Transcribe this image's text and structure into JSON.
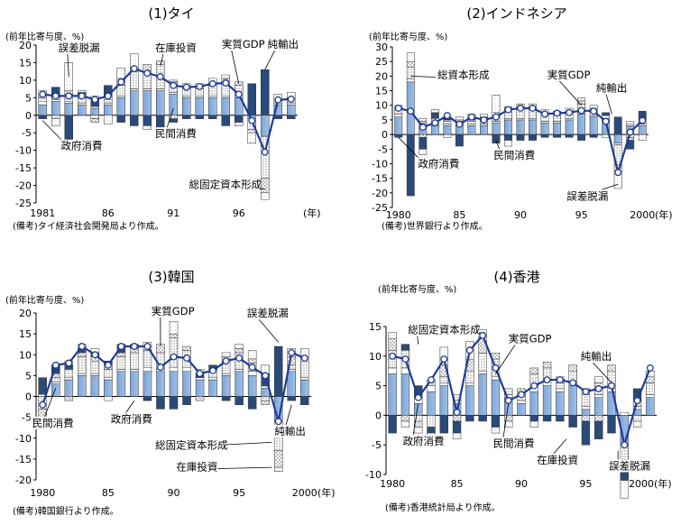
{
  "units_label": "(前年比寄与度、%)",
  "legend_components": [
    "民間消費",
    "政府消費",
    "総固定資本形成",
    "在庫投資",
    "純輸出",
    "誤差脱漏"
  ],
  "colors": {
    "private_consumption": "#9fbfe6",
    "government_consumption": "#ffffff",
    "gross_fixed_capital": "#dcdcdc",
    "inventory": "#e8e8e8",
    "net_exports": "#2a4a78",
    "discrepancy": "#f4f4f4",
    "gdp_line": "#1f3b95"
  },
  "panels": [
    {
      "title": "(1)タイ",
      "note": "(備考)タイ経済社会開発局より作成。",
      "year_unit": "(年)"
    },
    {
      "title": "(2)インドネシア",
      "note": "(備考)世界銀行より作成。",
      "year_unit": "(年)"
    },
    {
      "title": "(3)韓国",
      "note": "(備考)韓国銀行より作成。",
      "year_unit": "(年)"
    },
    {
      "title": "(4)香港",
      "note": "(備考)香港統計局より作成。",
      "year_unit": "(年)"
    }
  ],
  "chart_data": [
    {
      "type": "bar",
      "title": "(1)タイ",
      "ylabel": "(前年比寄与度、%)",
      "ylim": [
        -25,
        20
      ],
      "yticks": [
        -25,
        -20,
        -15,
        -10,
        -5,
        0,
        5,
        10,
        15,
        20
      ],
      "x": [
        1981,
        1982,
        1983,
        1984,
        1985,
        1986,
        1987,
        1988,
        1989,
        1990,
        1991,
        1992,
        1993,
        1994,
        1995,
        1996,
        1997,
        1998,
        1999,
        2000
      ],
      "xticks": [
        "1981",
        "86",
        "91",
        "96",
        "2000"
      ],
      "series": [
        {
          "key": "private_consumption",
          "values": [
            3,
            4,
            3.5,
            3,
            2,
            3,
            5,
            7,
            7,
            7,
            6,
            5,
            5,
            5,
            5,
            5,
            -1,
            -6,
            3,
            3
          ]
        },
        {
          "key": "government_consumption",
          "values": [
            1,
            0.5,
            0.5,
            0.5,
            0.5,
            0.5,
            0.5,
            0.5,
            0.5,
            0.5,
            0.5,
            0.5,
            0.5,
            0.5,
            0.5,
            0.5,
            0,
            0,
            0.5,
            0.5
          ]
        },
        {
          "key": "gross_fixed_capital",
          "values": [
            1,
            0.5,
            2,
            1.5,
            -1,
            1,
            3,
            5,
            5,
            7,
            3,
            2,
            2,
            3,
            4,
            3,
            -3,
            -12,
            0,
            1
          ]
        },
        {
          "key": "inventory",
          "values": [
            0.5,
            -1,
            1,
            0.5,
            -1,
            1,
            2,
            1,
            2,
            1,
            -1,
            0,
            0,
            0,
            1,
            1,
            -1,
            -4,
            1,
            0.5
          ]
        },
        {
          "key": "net_exports",
          "values": [
            -1,
            3,
            -9,
            1,
            2,
            3,
            -2,
            -3,
            -3,
            -5,
            -1,
            -1,
            -1,
            -1,
            -3,
            -2,
            9,
            13,
            -1,
            -1
          ]
        },
        {
          "key": "discrepancy",
          "values": [
            1.5,
            -2,
            8,
            0.5,
            1,
            -2.5,
            3,
            4,
            -1,
            0,
            0.5,
            1.5,
            1.5,
            2,
            1,
            -1,
            -3,
            -2,
            1.5,
            1.5
          ]
        }
      ],
      "gdp": [
        6,
        5.5,
        5.5,
        5.5,
        4.5,
        5.5,
        9.5,
        13.3,
        12,
        11,
        8.5,
        8,
        8.2,
        9,
        9.2,
        6,
        -1.5,
        -10.5,
        4.4,
        4.6
      ],
      "labels": [
        "誤差脱漏",
        "在庫投資",
        "実質GDP",
        "純輸出",
        "政府消費",
        "民間消費",
        "総固定資本形成"
      ]
    },
    {
      "type": "bar",
      "title": "(2)インドネシア",
      "ylabel": "(前年比寄与度、%)",
      "ylim": [
        -25,
        30
      ],
      "yticks": [
        -25,
        -20,
        -15,
        -10,
        -5,
        0,
        5,
        10,
        15,
        20,
        25,
        30
      ],
      "x": [
        1980,
        1981,
        1982,
        1983,
        1984,
        1985,
        1986,
        1987,
        1988,
        1989,
        1990,
        1991,
        1992,
        1993,
        1994,
        1995,
        1996,
        1997,
        1998,
        1999,
        2000
      ],
      "xticks": [
        "1980",
        "85",
        "90",
        "95",
        "2000"
      ],
      "series": [
        {
          "key": "private_consumption",
          "values": [
            6,
            18,
            4,
            3,
            3,
            3,
            3,
            3,
            4,
            5,
            5,
            5,
            4,
            4,
            5,
            7,
            6,
            5,
            -3,
            3,
            3
          ]
        },
        {
          "key": "government_consumption",
          "values": [
            1,
            1,
            0.5,
            0.5,
            0.5,
            0.5,
            0.5,
            0.5,
            0.5,
            0.5,
            0.5,
            0.5,
            0.5,
            0.5,
            0.5,
            0.5,
            0.5,
            0.5,
            -0.5,
            0.5,
            0.5
          ]
        },
        {
          "key": "gross_fixed_capital",
          "values": [
            2,
            4,
            1,
            1,
            1,
            1,
            1,
            1,
            2,
            3,
            4,
            3,
            2,
            2,
            2,
            3,
            2,
            1,
            -7,
            -1,
            1
          ]
        },
        {
          "key": "inventory",
          "values": [
            0,
            2,
            -1,
            1,
            0.5,
            0.5,
            0.5,
            0.5,
            1,
            1,
            1,
            1,
            1,
            0.5,
            0.5,
            1,
            0.5,
            0,
            -2,
            -1,
            0.5
          ]
        },
        {
          "key": "net_exports",
          "values": [
            -1,
            -21,
            -4,
            2,
            1,
            -4,
            1,
            1,
            -3,
            -2,
            -2,
            -2,
            -1,
            -1,
            -1,
            -2,
            -1,
            1,
            6,
            -3,
            3
          ]
        },
        {
          "key": "discrepancy",
          "values": [
            1,
            3,
            -2,
            1,
            -1,
            1,
            1,
            1,
            6,
            -2,
            0,
            1,
            1,
            1,
            1,
            1,
            1,
            -1,
            -6,
            1,
            -2
          ]
        }
      ],
      "gdp": [
        9,
        8,
        2.5,
        4,
        6.5,
        3.5,
        6,
        5,
        6,
        8.5,
        9,
        9,
        7,
        7.3,
        7.5,
        8.2,
        8,
        4.5,
        -13,
        0.8,
        4.8
      ],
      "labels": [
        "総資本形成",
        "実質GDP",
        "純輸出",
        "政府消費",
        "民間消費",
        "誤差脱漏"
      ]
    },
    {
      "type": "bar",
      "title": "(3)韓国",
      "ylabel": "(前年比寄与度、%)",
      "ylim": [
        -20,
        20
      ],
      "yticks": [
        -20,
        -15,
        -10,
        -5,
        0,
        5,
        10,
        15,
        20
      ],
      "x": [
        1980,
        1981,
        1982,
        1983,
        1984,
        1985,
        1986,
        1987,
        1988,
        1989,
        1990,
        1991,
        1992,
        1993,
        1994,
        1995,
        1996,
        1997,
        1998,
        1999,
        2000
      ],
      "xticks": [
        "1980",
        "85",
        "90",
        "95",
        "2000"
      ],
      "series": [
        {
          "key": "private_consumption",
          "values": [
            0,
            3,
            4,
            5,
            5,
            4,
            6,
            6,
            6,
            6,
            6,
            6,
            4,
            4,
            5,
            6,
            5,
            2,
            -6,
            6,
            4
          ]
        },
        {
          "key": "government_consumption",
          "values": [
            0.5,
            0.5,
            0.5,
            0.5,
            0.5,
            0.5,
            0.5,
            0.5,
            1,
            0.5,
            1,
            1,
            0.5,
            0.5,
            0.5,
            0.5,
            1,
            0.5,
            0,
            0.5,
            0.5
          ]
        },
        {
          "key": "gross_fixed_capital",
          "values": [
            -3,
            1,
            2,
            4,
            3,
            2,
            3,
            4,
            4,
            4,
            7,
            4,
            0,
            2,
            3,
            4,
            2,
            -1,
            -7,
            1,
            4
          ]
        },
        {
          "key": "inventory",
          "values": [
            -2,
            1,
            -1,
            1,
            1,
            1,
            1,
            1,
            1,
            2,
            1,
            1,
            -1,
            0,
            1,
            1,
            1,
            -1,
            -4,
            2,
            1
          ]
        },
        {
          "key": "net_exports",
          "values": [
            4,
            2,
            1,
            1,
            1,
            1,
            2,
            1,
            -1,
            -3,
            -3,
            -2,
            1,
            1,
            -1,
            -2,
            -3,
            3,
            12,
            -1,
            -2
          ]
        },
        {
          "key": "discrepancy",
          "values": [
            -1,
            0,
            1,
            1,
            1,
            -1,
            0,
            0,
            1,
            0,
            3,
            0,
            1,
            0,
            1,
            1,
            2,
            2,
            -1,
            2,
            2
          ]
        }
      ],
      "gdp": [
        -2,
        7.5,
        8,
        12,
        10,
        7.5,
        12,
        12,
        12,
        7,
        9.5,
        9.2,
        5.5,
        6.2,
        8.5,
        9.2,
        7,
        5,
        -6,
        10.5,
        9.2
      ],
      "labels": [
        "実質GDP",
        "誤差脱漏",
        "民間消費",
        "政府消費",
        "総固定資本形成",
        "在庫投資",
        "純輸出"
      ]
    },
    {
      "type": "bar",
      "title": "(4)香港",
      "ylabel": "(前年比寄与度、%)",
      "ylim": [
        -10,
        15
      ],
      "yticks": [
        -10,
        -5,
        0,
        5,
        10,
        15
      ],
      "x": [
        1980,
        1981,
        1982,
        1983,
        1984,
        1985,
        1986,
        1987,
        1988,
        1989,
        1990,
        1991,
        1992,
        1993,
        1994,
        1995,
        1996,
        1997,
        1998,
        1999,
        2000
      ],
      "xticks": [
        "1980",
        "85",
        "90",
        "95",
        "2000(年)"
      ],
      "series": [
        {
          "key": "private_consumption",
          "values": [
            7,
            7,
            2,
            4,
            5,
            2,
            5,
            7,
            6,
            3,
            2,
            4,
            5,
            4,
            5,
            1,
            3,
            4,
            -5,
            1,
            3
          ]
        },
        {
          "key": "government_consumption",
          "values": [
            1,
            1,
            1,
            1,
            0.5,
            0.5,
            0.5,
            0.5,
            0.5,
            0.5,
            0.5,
            1,
            1,
            0.5,
            0.5,
            0.5,
            0.5,
            0.5,
            0.5,
            0.5,
            0.5
          ]
        },
        {
          "key": "gross_fixed_capital",
          "values": [
            3,
            3,
            -1,
            -2,
            1,
            1,
            2,
            3,
            3,
            1,
            1,
            2,
            2,
            1,
            2,
            2,
            2,
            3,
            -3,
            -1,
            2
          ]
        },
        {
          "key": "inventory",
          "values": [
            2,
            -1,
            -1,
            1,
            2,
            -1,
            2,
            3,
            1,
            -1,
            1,
            1,
            1,
            1,
            1,
            -1,
            -1,
            1,
            -1,
            1,
            1
          ]
        },
        {
          "key": "net_exports",
          "values": [
            -3,
            1,
            2,
            -1,
            -3,
            -2,
            -1,
            -1,
            -2,
            0,
            0,
            -1,
            -1,
            -1,
            -2,
            -4,
            -3,
            -3,
            -2,
            2,
            0
          ]
        },
        {
          "key": "discrepancy",
          "values": [
            1,
            -1,
            -1,
            -2,
            3,
            -1,
            3,
            1,
            -1,
            -1,
            0,
            -1,
            0,
            0,
            0,
            1,
            1,
            0,
            -3,
            -1,
            1
          ]
        }
      ],
      "gdp": [
        10,
        9.5,
        3,
        6,
        9.5,
        0.5,
        11,
        13.5,
        8,
        2.5,
        3.5,
        5,
        6,
        6,
        5.5,
        4,
        4.5,
        5,
        -5,
        2.5,
        8
      ],
      "labels": [
        "総固定資本形成",
        "実質GDP",
        "純輸出",
        "政府消費",
        "民間消費",
        "在庫投資",
        "誤差脱漏"
      ]
    }
  ]
}
